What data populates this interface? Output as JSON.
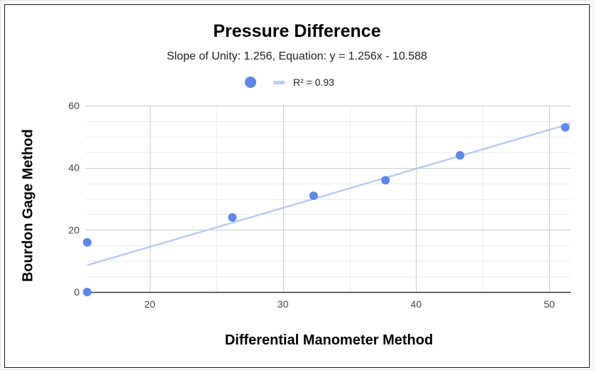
{
  "chart_data": {
    "type": "scatter",
    "title": "Pressure Difference",
    "subtitle": "Slope of Unity: 1.256, Equation: y = 1.256x - 10.588",
    "xlabel": "Differential Manometer Method",
    "ylabel": "Bourdon Gage Method",
    "xlim": [
      15.2,
      51.6
    ],
    "ylim": [
      0,
      60
    ],
    "x_ticks": [
      20,
      30,
      40,
      50
    ],
    "y_ticks": [
      0,
      20,
      40,
      60
    ],
    "grid": true,
    "legend": {
      "position": "top",
      "trendline_label": "R² = 0.93"
    },
    "series": [
      {
        "x": [
          15.3,
          15.3,
          26.2,
          32.3,
          37.7,
          43.3,
          51.2
        ],
        "y": [
          0,
          16,
          24,
          31,
          36,
          44,
          53
        ]
      }
    ],
    "trendline": {
      "slope": 1.256,
      "intercept": -10.588,
      "r_squared": 0.93
    },
    "colors": {
      "points": "#5b87ea",
      "trendline": "#b8cdf2",
      "major_grid": "#cccccc",
      "minor_grid": "#ebebeb",
      "axis": "#333333"
    }
  }
}
